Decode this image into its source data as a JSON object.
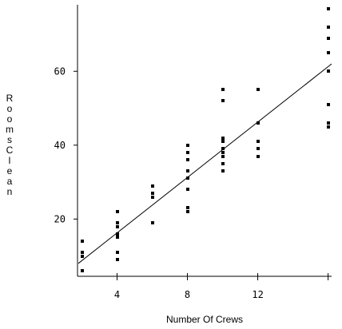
{
  "chart_data": {
    "type": "scatter",
    "title": "",
    "xlabel": "Number Of Crews",
    "ylabel": "Rooms Clean",
    "xlim": [
      1.75,
      16.2
    ],
    "ylim": [
      4.5,
      78
    ],
    "x_ticks": [
      4,
      8,
      12,
      16
    ],
    "x_tick_labels": [
      "4",
      "8",
      "12",
      ""
    ],
    "y_ticks": [
      20,
      40,
      60
    ],
    "y_tick_labels": [
      "20",
      "40",
      "60"
    ],
    "grid": false,
    "legend": "none",
    "marker_color": "#000000",
    "line_color": "#000000",
    "points": [
      {
        "x": 2,
        "y": 6
      },
      {
        "x": 2,
        "y": 10
      },
      {
        "x": 2,
        "y": 11
      },
      {
        "x": 2,
        "y": 14
      },
      {
        "x": 4,
        "y": 9
      },
      {
        "x": 4,
        "y": 11
      },
      {
        "x": 4,
        "y": 15
      },
      {
        "x": 4,
        "y": 16
      },
      {
        "x": 4,
        "y": 18
      },
      {
        "x": 4,
        "y": 19
      },
      {
        "x": 4,
        "y": 22
      },
      {
        "x": 6,
        "y": 19
      },
      {
        "x": 6,
        "y": 26
      },
      {
        "x": 6,
        "y": 27
      },
      {
        "x": 6,
        "y": 29
      },
      {
        "x": 8,
        "y": 22
      },
      {
        "x": 8,
        "y": 23
      },
      {
        "x": 8,
        "y": 28
      },
      {
        "x": 8,
        "y": 31
      },
      {
        "x": 8,
        "y": 33
      },
      {
        "x": 8,
        "y": 36
      },
      {
        "x": 8,
        "y": 38
      },
      {
        "x": 8,
        "y": 40
      },
      {
        "x": 10,
        "y": 33
      },
      {
        "x": 10,
        "y": 35
      },
      {
        "x": 10,
        "y": 37
      },
      {
        "x": 10,
        "y": 38
      },
      {
        "x": 10,
        "y": 39
      },
      {
        "x": 10,
        "y": 41
      },
      {
        "x": 10,
        "y": 42
      },
      {
        "x": 10,
        "y": 52
      },
      {
        "x": 10,
        "y": 55
      },
      {
        "x": 12,
        "y": 37
      },
      {
        "x": 12,
        "y": 39
      },
      {
        "x": 12,
        "y": 41
      },
      {
        "x": 12,
        "y": 46
      },
      {
        "x": 12,
        "y": 55
      },
      {
        "x": 16,
        "y": 45
      },
      {
        "x": 16,
        "y": 46
      },
      {
        "x": 16,
        "y": 51
      },
      {
        "x": 16,
        "y": 60
      },
      {
        "x": 16,
        "y": 65
      },
      {
        "x": 16,
        "y": 69
      },
      {
        "x": 16,
        "y": 72
      },
      {
        "x": 16,
        "y": 77
      }
    ],
    "fit_line": {
      "x": [
        1.8,
        16.2
      ],
      "y": [
        8,
        62
      ]
    }
  }
}
